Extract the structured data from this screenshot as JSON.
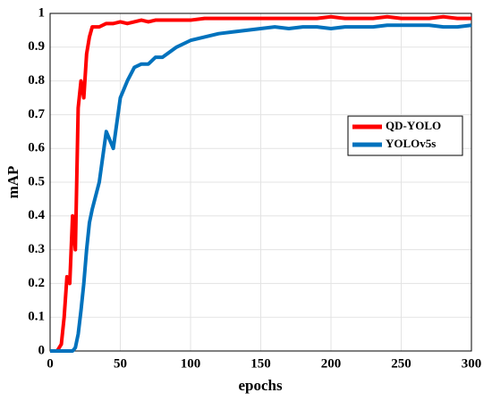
{
  "chart_data": {
    "type": "line",
    "xlabel": "epochs",
    "ylabel": "mAP",
    "x": [
      0,
      5,
      8,
      10,
      12,
      14,
      16,
      18,
      20,
      22,
      24,
      26,
      28,
      30,
      35,
      40,
      45,
      50,
      55,
      60,
      65,
      70,
      75,
      80,
      90,
      100,
      110,
      120,
      130,
      140,
      150,
      160,
      170,
      180,
      190,
      200,
      210,
      220,
      230,
      240,
      250,
      260,
      270,
      280,
      290,
      300
    ],
    "series": [
      {
        "name": "QD-YOLO",
        "color": "#ff0000",
        "values": [
          0,
          0,
          0.02,
          0.1,
          0.22,
          0.2,
          0.4,
          0.3,
          0.72,
          0.8,
          0.75,
          0.88,
          0.93,
          0.96,
          0.96,
          0.97,
          0.97,
          0.975,
          0.97,
          0.975,
          0.98,
          0.975,
          0.98,
          0.98,
          0.98,
          0.98,
          0.985,
          0.985,
          0.985,
          0.985,
          0.985,
          0.985,
          0.985,
          0.985,
          0.985,
          0.99,
          0.985,
          0.985,
          0.985,
          0.99,
          0.985,
          0.985,
          0.985,
          0.99,
          0.985,
          0.985
        ]
      },
      {
        "name": "YOLOv5s",
        "color": "#0072bd",
        "values": [
          0,
          0,
          0,
          0,
          0,
          0,
          0,
          0.01,
          0.05,
          0.12,
          0.2,
          0.3,
          0.38,
          0.42,
          0.5,
          0.65,
          0.6,
          0.75,
          0.8,
          0.84,
          0.85,
          0.85,
          0.87,
          0.87,
          0.9,
          0.92,
          0.93,
          0.94,
          0.945,
          0.95,
          0.955,
          0.96,
          0.955,
          0.96,
          0.96,
          0.955,
          0.96,
          0.96,
          0.96,
          0.965,
          0.965,
          0.965,
          0.965,
          0.96,
          0.96,
          0.965
        ]
      }
    ],
    "xlim": [
      0,
      300
    ],
    "xticks": [
      0,
      50,
      100,
      150,
      200,
      250,
      300
    ],
    "ylim": [
      0,
      1
    ],
    "yticks": [
      0,
      0.1,
      0.2,
      0.3,
      0.4,
      0.5,
      0.6,
      0.7,
      0.8,
      0.9,
      1
    ],
    "grid": true,
    "legend": "east"
  }
}
